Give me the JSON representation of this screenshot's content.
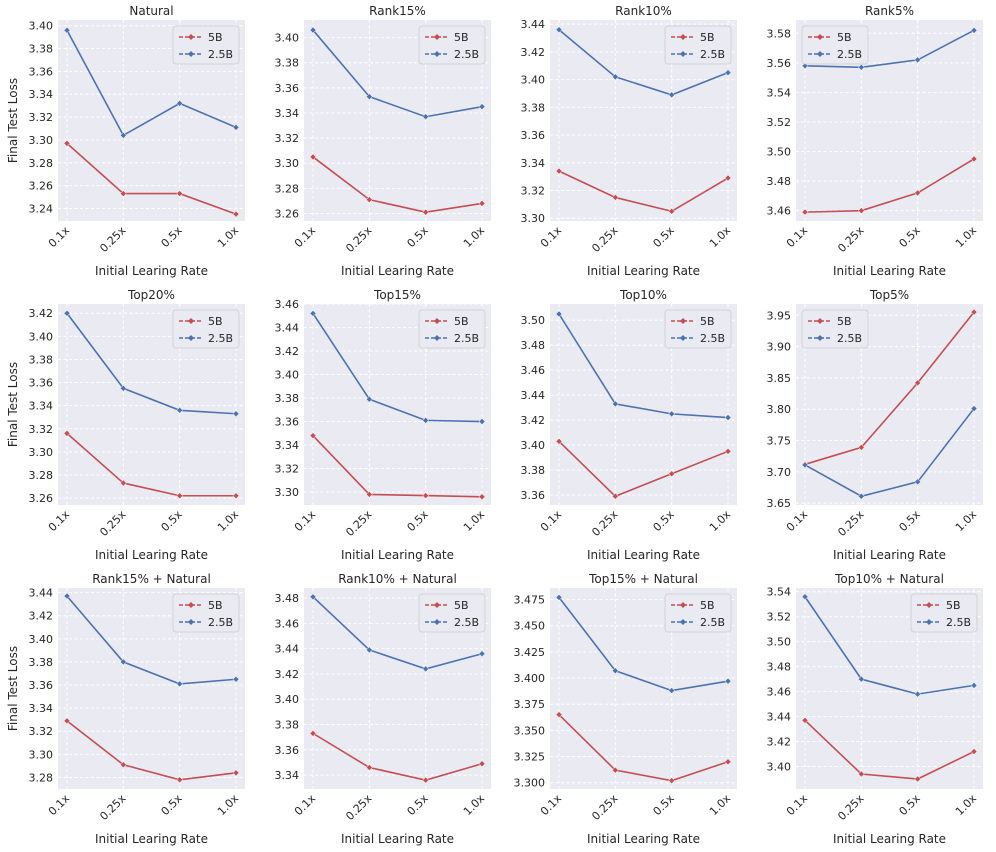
{
  "figure": {
    "colors": {
      "5B": "#c44e52",
      "2.5B": "#4c72b0",
      "panel_bg": "#eaeaf2"
    }
  },
  "chart_data": [
    {
      "type": "line",
      "title": "Natural",
      "categories": [
        "0.1x",
        "0.25x",
        "0.5x",
        "1.0x"
      ],
      "xlabel": "Initial Learing Rate",
      "ylabel": "Final Test Loss",
      "ylim": [
        3.229,
        3.405
      ],
      "yticks": [
        3.24,
        3.26,
        3.28,
        3.3,
        3.32,
        3.34,
        3.36,
        3.38,
        3.4
      ],
      "ytick_decimals": 2,
      "legend": "top-right",
      "series": [
        {
          "name": "5B",
          "values": [
            3.297,
            3.253,
            3.253,
            3.235
          ]
        },
        {
          "name": "2.5B",
          "values": [
            3.396,
            3.304,
            3.332,
            3.311
          ]
        }
      ]
    },
    {
      "type": "line",
      "title": "Rank15%",
      "categories": [
        "0.1x",
        "0.25x",
        "0.5x",
        "1.0x"
      ],
      "xlabel": "Initial Learing Rate",
      "ylabel": "",
      "ylim": [
        3.254,
        3.414
      ],
      "yticks": [
        3.26,
        3.28,
        3.3,
        3.32,
        3.34,
        3.36,
        3.38,
        3.4
      ],
      "ytick_decimals": 2,
      "legend": "top-right",
      "series": [
        {
          "name": "5B",
          "values": [
            3.305,
            3.271,
            3.261,
            3.268
          ]
        },
        {
          "name": "2.5B",
          "values": [
            3.406,
            3.353,
            3.337,
            3.345
          ]
        }
      ]
    },
    {
      "type": "line",
      "title": "Rank10%",
      "categories": [
        "0.1x",
        "0.25x",
        "0.5x",
        "1.0x"
      ],
      "xlabel": "Initial Learing Rate",
      "ylabel": "",
      "ylim": [
        3.298,
        3.443
      ],
      "yticks": [
        3.3,
        3.32,
        3.34,
        3.36,
        3.38,
        3.4,
        3.42,
        3.44
      ],
      "ytick_decimals": 2,
      "legend": "top-right",
      "series": [
        {
          "name": "5B",
          "values": [
            3.334,
            3.315,
            3.305,
            3.329
          ]
        },
        {
          "name": "2.5B",
          "values": [
            3.436,
            3.402,
            3.389,
            3.405
          ]
        }
      ]
    },
    {
      "type": "line",
      "title": "Rank5%",
      "categories": [
        "0.1x",
        "0.25x",
        "0.5x",
        "1.0x"
      ],
      "xlabel": "Initial Learing Rate",
      "ylabel": "",
      "ylim": [
        3.453,
        3.589
      ],
      "yticks": [
        3.46,
        3.48,
        3.5,
        3.52,
        3.54,
        3.56,
        3.58
      ],
      "ytick_decimals": 2,
      "legend": "top-left",
      "series": [
        {
          "name": "5B",
          "values": [
            3.459,
            3.46,
            3.472,
            3.495
          ]
        },
        {
          "name": "2.5B",
          "values": [
            3.558,
            3.557,
            3.562,
            3.582
          ]
        }
      ]
    },
    {
      "type": "line",
      "title": "Top20%",
      "categories": [
        "0.1x",
        "0.25x",
        "0.5x",
        "1.0x"
      ],
      "xlabel": "Initial Learing Rate",
      "ylabel": "Final Test Loss",
      "ylim": [
        3.254,
        3.428
      ],
      "yticks": [
        3.26,
        3.28,
        3.3,
        3.32,
        3.34,
        3.36,
        3.38,
        3.4,
        3.42
      ],
      "ytick_decimals": 2,
      "legend": "top-right",
      "series": [
        {
          "name": "5B",
          "values": [
            3.316,
            3.273,
            3.262,
            3.262
          ]
        },
        {
          "name": "2.5B",
          "values": [
            3.42,
            3.355,
            3.336,
            3.333
          ]
        }
      ]
    },
    {
      "type": "line",
      "title": "Top15%",
      "categories": [
        "0.1x",
        "0.25x",
        "0.5x",
        "1.0x"
      ],
      "xlabel": "Initial Learing Rate",
      "ylabel": "",
      "ylim": [
        3.289,
        3.46
      ],
      "yticks": [
        3.3,
        3.32,
        3.34,
        3.36,
        3.38,
        3.4,
        3.42,
        3.44,
        3.46
      ],
      "ytick_decimals": 2,
      "legend": "top-right",
      "series": [
        {
          "name": "5B",
          "values": [
            3.348,
            3.298,
            3.297,
            3.296
          ]
        },
        {
          "name": "2.5B",
          "values": [
            3.452,
            3.379,
            3.361,
            3.36
          ]
        }
      ]
    },
    {
      "type": "line",
      "title": "Top10%",
      "categories": [
        "0.1x",
        "0.25x",
        "0.5x",
        "1.0x"
      ],
      "xlabel": "Initial Learing Rate",
      "ylabel": "",
      "ylim": [
        3.352,
        3.513
      ],
      "yticks": [
        3.36,
        3.38,
        3.4,
        3.42,
        3.44,
        3.46,
        3.48,
        3.5
      ],
      "ytick_decimals": 2,
      "legend": "top-right",
      "series": [
        {
          "name": "5B",
          "values": [
            3.403,
            3.359,
            3.377,
            3.395
          ]
        },
        {
          "name": "2.5B",
          "values": [
            3.505,
            3.433,
            3.425,
            3.422
          ]
        }
      ]
    },
    {
      "type": "line",
      "title": "Top5%",
      "categories": [
        "0.1x",
        "0.25x",
        "0.5x",
        "1.0x"
      ],
      "xlabel": "Initial Learing Rate",
      "ylabel": "",
      "ylim": [
        3.647,
        3.968
      ],
      "yticks": [
        3.65,
        3.7,
        3.75,
        3.8,
        3.85,
        3.9,
        3.95
      ],
      "ytick_decimals": 2,
      "legend": "top-left",
      "series": [
        {
          "name": "5B",
          "values": [
            3.712,
            3.739,
            3.842,
            3.955
          ]
        },
        {
          "name": "2.5B",
          "values": [
            3.711,
            3.661,
            3.684,
            3.801
          ]
        }
      ]
    },
    {
      "type": "line",
      "title": "Rank15% + Natural",
      "categories": [
        "0.1x",
        "0.25x",
        "0.5x",
        "1.0x"
      ],
      "xlabel": "Initial Learing Rate",
      "ylabel": "Final Test Loss",
      "ylim": [
        3.27,
        3.444
      ],
      "yticks": [
        3.28,
        3.3,
        3.32,
        3.34,
        3.36,
        3.38,
        3.4,
        3.42,
        3.44
      ],
      "ytick_decimals": 2,
      "legend": "top-right",
      "series": [
        {
          "name": "5B",
          "values": [
            3.329,
            3.291,
            3.278,
            3.284
          ]
        },
        {
          "name": "2.5B",
          "values": [
            3.437,
            3.38,
            3.361,
            3.365
          ]
        }
      ]
    },
    {
      "type": "line",
      "title": "Rank10% + Natural",
      "categories": [
        "0.1x",
        "0.25x",
        "0.5x",
        "1.0x"
      ],
      "xlabel": "Initial Learing Rate",
      "ylabel": "",
      "ylim": [
        3.329,
        3.488
      ],
      "yticks": [
        3.34,
        3.36,
        3.38,
        3.4,
        3.42,
        3.44,
        3.46,
        3.48
      ],
      "ytick_decimals": 2,
      "legend": "top-right",
      "series": [
        {
          "name": "5B",
          "values": [
            3.373,
            3.346,
            3.336,
            3.349
          ]
        },
        {
          "name": "2.5B",
          "values": [
            3.481,
            3.439,
            3.424,
            3.436
          ]
        }
      ]
    },
    {
      "type": "line",
      "title": "Top15% + Natural",
      "categories": [
        "0.1x",
        "0.25x",
        "0.5x",
        "1.0x"
      ],
      "xlabel": "Initial Learing Rate",
      "ylabel": "",
      "ylim": [
        3.294,
        3.486
      ],
      "yticks": [
        3.3,
        3.325,
        3.35,
        3.375,
        3.4,
        3.425,
        3.45,
        3.475
      ],
      "ytick_decimals": 3,
      "legend": "top-right",
      "series": [
        {
          "name": "5B",
          "values": [
            3.365,
            3.312,
            3.302,
            3.32
          ]
        },
        {
          "name": "2.5B",
          "values": [
            3.477,
            3.407,
            3.388,
            3.397
          ]
        }
      ]
    },
    {
      "type": "line",
      "title": "Top10% + Natural",
      "categories": [
        "0.1x",
        "0.25x",
        "0.5x",
        "1.0x"
      ],
      "xlabel": "Initial Learing Rate",
      "ylabel": "",
      "ylim": [
        3.382,
        3.543
      ],
      "yticks": [
        3.4,
        3.42,
        3.44,
        3.46,
        3.48,
        3.5,
        3.52,
        3.54
      ],
      "ytick_decimals": 2,
      "legend": "top-right",
      "series": [
        {
          "name": "5B",
          "values": [
            3.437,
            3.394,
            3.39,
            3.412
          ]
        },
        {
          "name": "2.5B",
          "values": [
            3.536,
            3.47,
            3.458,
            3.465
          ]
        }
      ]
    }
  ]
}
